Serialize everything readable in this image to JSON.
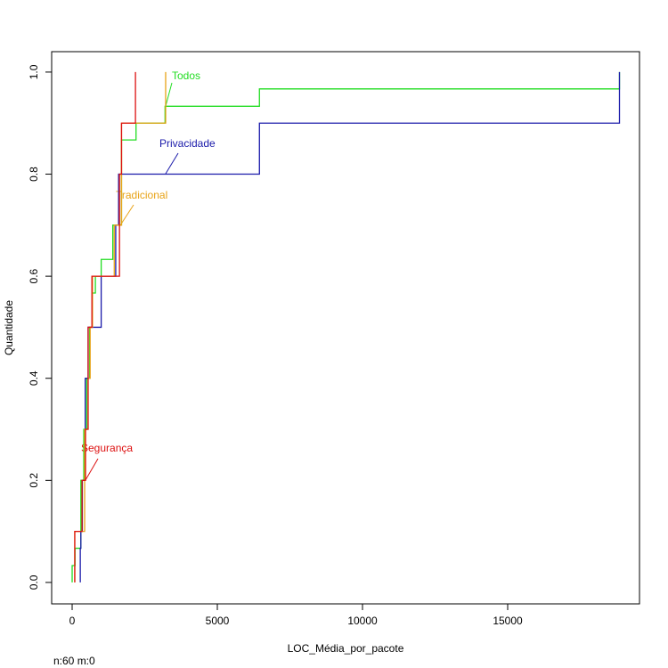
{
  "chart_data": {
    "type": "step",
    "xlabel": "LOC_Média_por_pacote",
    "ylabel": "Quantidade",
    "footnote": "n:60 m:0",
    "xlim": [
      -706,
      19540
    ],
    "ylim": [
      -0.042,
      1.04
    ],
    "xticks": [
      0,
      5000,
      10000,
      15000
    ],
    "yticks": [
      {
        "value": 0,
        "label": "0.0"
      },
      {
        "value": 0.2,
        "label": "0.2"
      },
      {
        "value": 0.4,
        "label": "0.4"
      },
      {
        "value": 0.6,
        "label": "0.6"
      },
      {
        "value": 0.8,
        "label": "0.8"
      },
      {
        "value": 1,
        "label": "1.0"
      }
    ],
    "series": [
      {
        "name": "Todos",
        "color": "#22dd22",
        "x": [
          0,
          100,
          300,
          400,
          500,
          600,
          700,
          800,
          1000,
          1400,
          1700,
          2200,
          3200,
          6450,
          18850
        ],
        "values": [
          0.033,
          0.067,
          0.2,
          0.3,
          0.4,
          0.5,
          0.567,
          0.6,
          0.633,
          0.7,
          0.867,
          0.9,
          0.933,
          0.967,
          1.0
        ]
      },
      {
        "name": "Privacidade",
        "color": "#1a1aaa",
        "x": [
          280,
          300,
          350,
          450,
          550,
          1000,
          1500,
          1600,
          6450,
          18850
        ],
        "values": [
          0.067,
          0.1,
          0.2,
          0.4,
          0.5,
          0.6,
          0.7,
          0.8,
          0.9,
          1.0
        ]
      },
      {
        "name": "Tradicional",
        "color": "#e8a317",
        "x": [
          90,
          430,
          550,
          620,
          700,
          1450,
          1700,
          3220
        ],
        "values": [
          0.1,
          0.3,
          0.4,
          0.5,
          0.6,
          0.7,
          0.9,
          1.0
        ]
      },
      {
        "name": "Segurança",
        "color": "#dd1111",
        "x": [
          90,
          340,
          460,
          550,
          680,
          1630,
          1700,
          2180
        ],
        "values": [
          0.1,
          0.2,
          0.3,
          0.5,
          0.6,
          0.8,
          0.9,
          1.0
        ]
      }
    ]
  }
}
